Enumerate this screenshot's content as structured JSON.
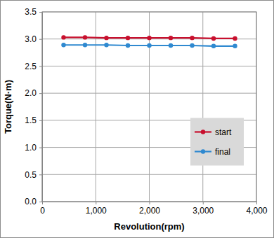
{
  "chart_data": {
    "type": "line",
    "x_label": "Revolution(rpm)",
    "y_label": "Torque(N·m)",
    "x": [
      400,
      800,
      1200,
      1600,
      2000,
      2400,
      2800,
      3200,
      3600
    ],
    "series": [
      {
        "name": "start",
        "color": "#c8102e",
        "marker": "circle",
        "values": [
          3.03,
          3.03,
          3.02,
          3.02,
          3.02,
          3.02,
          3.02,
          3.01,
          3.01
        ]
      },
      {
        "name": "final",
        "color": "#2f89d0",
        "marker": "circle",
        "values": [
          2.89,
          2.89,
          2.89,
          2.88,
          2.88,
          2.88,
          2.88,
          2.87,
          2.87
        ]
      }
    ],
    "xlim": [
      0,
      4000
    ],
    "xticks": [
      0,
      {
        "value": 1000,
        "label": "1,000"
      },
      {
        "value": 2000,
        "label": "2,000"
      },
      {
        "value": 3000,
        "label": "3,000"
      },
      {
        "value": 4000,
        "label": "4,000"
      }
    ],
    "ylim": [
      0,
      3.5
    ],
    "yticks": [
      {
        "value": 0,
        "label": "0.0"
      },
      0.5,
      {
        "value": 1,
        "label": "1.0"
      },
      1.5,
      {
        "value": 2,
        "label": "2.0"
      },
      2.5,
      {
        "value": 3,
        "label": "3.0"
      },
      3.5
    ],
    "grid": true,
    "legend": "right"
  }
}
